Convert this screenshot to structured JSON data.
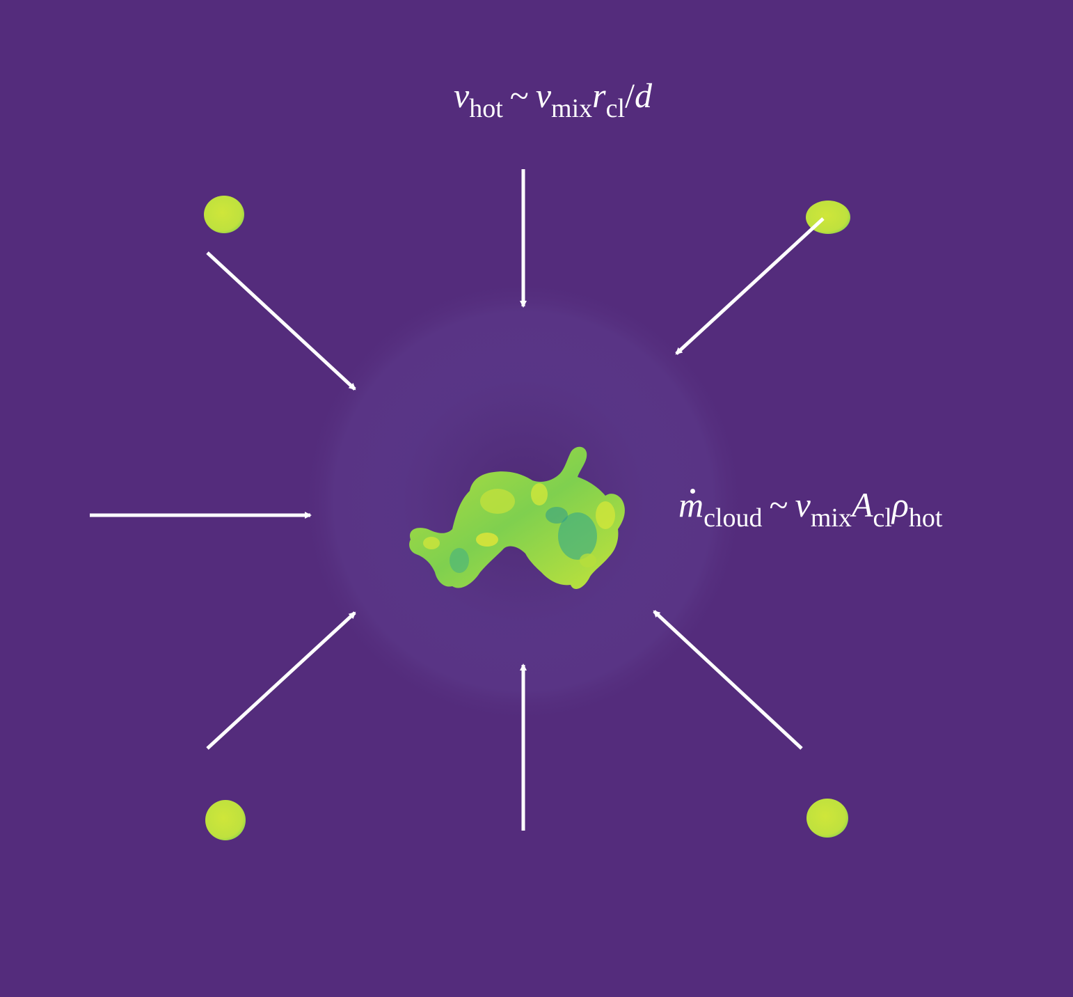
{
  "diagram": {
    "background_color": "#542c7c",
    "halo_color": "#5d3b8c",
    "cloud_color": "#c8e43c",
    "cloud_mid_color": "#7ccf52",
    "cloud_dark_color": "#2fa48a",
    "arrow_color": "#ffffff"
  },
  "labels": {
    "inflow_velocity": {
      "v": "v",
      "v_sub": "hot",
      "sim": "~",
      "v2": "v",
      "v2_sub": "mix",
      "r": "r",
      "r_sub": "cl",
      "slash": "/",
      "d": "d"
    },
    "mass_growth": {
      "m": "m",
      "m_sub": "cloud",
      "sim": "~",
      "v": "v",
      "v_sub": "mix",
      "a": "A",
      "a_sub": "cl",
      "rho": "ρ",
      "rho_sub": "hot"
    }
  }
}
